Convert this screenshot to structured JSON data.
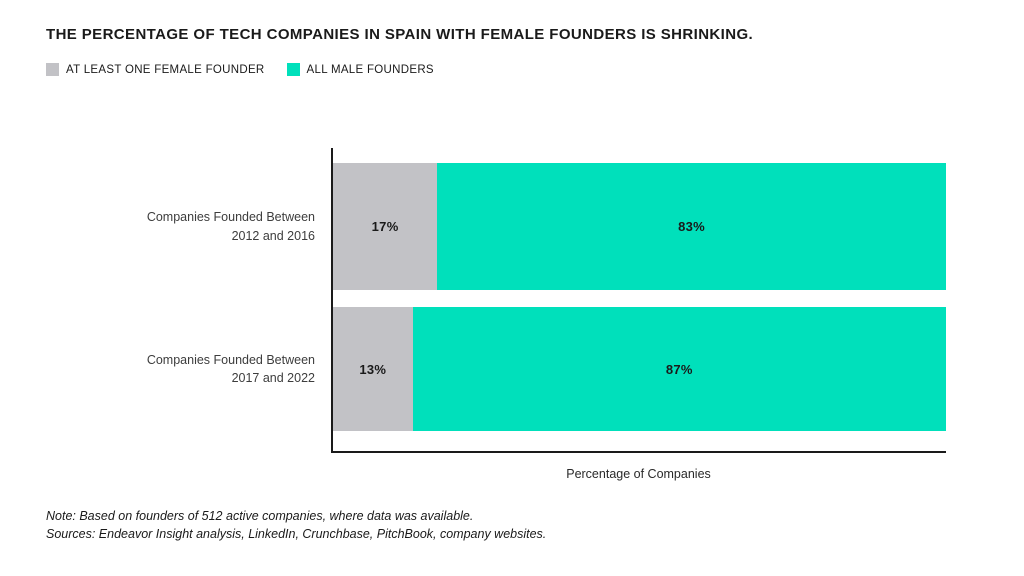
{
  "chart_data": {
    "type": "bar",
    "orientation": "horizontal",
    "stacked": true,
    "title": "THE PERCENTAGE OF TECH COMPANIES IN SPAIN WITH FEMALE FOUNDERS IS SHRINKING.",
    "xlabel": "Percentage of Companies",
    "xlim": [
      0,
      100
    ],
    "grid": false,
    "legend_position": "top-left",
    "legend": [
      {
        "label": "AT LEAST ONE FEMALE FOUNDER",
        "color": "#C2C2C6"
      },
      {
        "label": "ALL MALE FOUNDERS",
        "color": "#00E0BB"
      }
    ],
    "categories": [
      "Companies Founded Between 2012 and 2016",
      "Companies Founded Between 2017 and 2022"
    ],
    "series": [
      {
        "name": "AT LEAST ONE FEMALE FOUNDER",
        "values": [
          17,
          13
        ]
      },
      {
        "name": "ALL MALE FOUNDERS",
        "values": [
          83,
          87
        ]
      }
    ],
    "data_labels": [
      [
        "17%",
        "83%"
      ],
      [
        "13%",
        "87%"
      ]
    ]
  },
  "notes": {
    "line1": "Note: Based on founders of 512 active companies, where data was available.",
    "line2": "Sources: Endeavor Insight analysis, LinkedIn, Crunchbase, PitchBook, company websites."
  },
  "colors": {
    "axis": "#1A1A1A",
    "female_founder_gray": "#C2C2C6",
    "all_male_teal": "#00E0BB"
  }
}
